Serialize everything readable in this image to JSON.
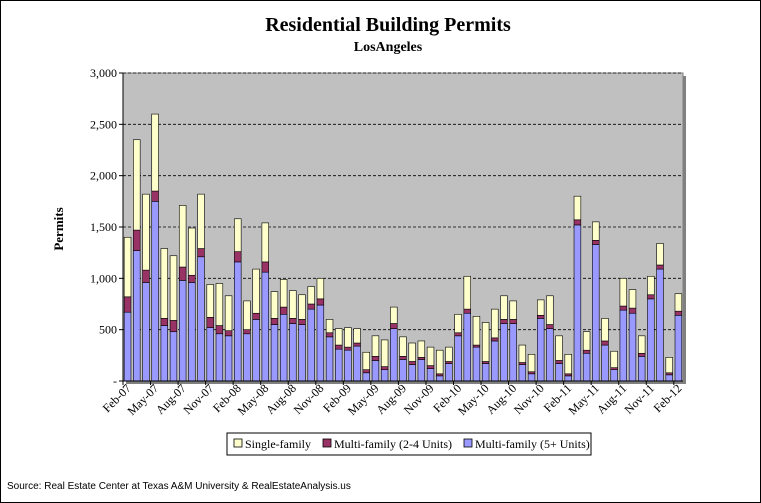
{
  "chart_data": {
    "type": "bar",
    "stacked": true,
    "title": "Residential Building Permits",
    "subtitle": "LosAngeles",
    "ylabel": "Permits",
    "xlabel": "",
    "ylim": [
      0,
      3000
    ],
    "yticks": [
      "-",
      "500",
      "1,000",
      "1,500",
      "2,000",
      "2,500",
      "3,000"
    ],
    "ytick_values": [
      0,
      500,
      1000,
      1500,
      2000,
      2500,
      3000
    ],
    "grid": "horizontal-dashed",
    "plot_background": "#c0c0c0",
    "legend_position": "bottom",
    "source": "Source: Real Estate Center at Texas A&M University & RealEstateAnalysis.us",
    "x_tick_labels": [
      {
        "index": 0,
        "label": "Feb-07"
      },
      {
        "index": 3,
        "label": "May-07"
      },
      {
        "index": 6,
        "label": "Aug-07"
      },
      {
        "index": 9,
        "label": "Nov-07"
      },
      {
        "index": 12,
        "label": "Feb-08"
      },
      {
        "index": 15,
        "label": "May-08"
      },
      {
        "index": 18,
        "label": "Aug-08"
      },
      {
        "index": 21,
        "label": "Nov-08"
      },
      {
        "index": 24,
        "label": "Feb-09"
      },
      {
        "index": 27,
        "label": "May-09"
      },
      {
        "index": 30,
        "label": "Aug-09"
      },
      {
        "index": 33,
        "label": "Nov-09"
      },
      {
        "index": 36,
        "label": "Feb-10"
      },
      {
        "index": 39,
        "label": "May-10"
      },
      {
        "index": 42,
        "label": "Aug-10"
      },
      {
        "index": 45,
        "label": "Nov-10"
      },
      {
        "index": 48,
        "label": "Feb-11"
      },
      {
        "index": 51,
        "label": "May-11"
      },
      {
        "index": 54,
        "label": "Aug-11"
      },
      {
        "index": 57,
        "label": "Nov-11"
      },
      {
        "index": 60,
        "label": "Feb-12"
      }
    ],
    "categories": [
      "Feb-07",
      "Mar-07",
      "Apr-07",
      "May-07",
      "Jun-07",
      "Jul-07",
      "Aug-07",
      "Sep-07",
      "Oct-07",
      "Nov-07",
      "Dec-07",
      "Jan-08",
      "Feb-08",
      "Mar-08",
      "Apr-08",
      "May-08",
      "Jun-08",
      "Jul-08",
      "Aug-08",
      "Sep-08",
      "Oct-08",
      "Nov-08",
      "Dec-08",
      "Jan-09",
      "Feb-09",
      "Mar-09",
      "Apr-09",
      "May-09",
      "Jun-09",
      "Jul-09",
      "Aug-09",
      "Sep-09",
      "Oct-09",
      "Nov-09",
      "Dec-09",
      "Jan-10",
      "Feb-10",
      "Mar-10",
      "Apr-10",
      "May-10",
      "Jun-10",
      "Jul-10",
      "Aug-10",
      "Sep-10",
      "Oct-10",
      "Nov-10",
      "Dec-10",
      "Jan-11",
      "Feb-11",
      "Mar-11",
      "Apr-11",
      "May-11",
      "Jun-11",
      "Jul-11",
      "Aug-11",
      "Sep-11",
      "Oct-11",
      "Nov-11",
      "Dec-11",
      "Jan-12",
      "Feb-12"
    ],
    "series": [
      {
        "name": "Multi-family (5+ Units)",
        "color": "#9999ff",
        "values": [
          670,
          1270,
          960,
          1750,
          540,
          480,
          980,
          960,
          1210,
          520,
          460,
          440,
          1160,
          460,
          600,
          1060,
          550,
          650,
          560,
          550,
          700,
          740,
          430,
          310,
          300,
          340,
          80,
          200,
          110,
          510,
          210,
          160,
          210,
          120,
          50,
          170,
          440,
          660,
          330,
          170,
          390,
          560,
          560,
          160,
          70,
          610,
          510,
          170,
          50,
          1520,
          270,
          1330,
          350,
          110,
          690,
          660,
          240,
          800,
          1090,
          60,
          640
        ]
      },
      {
        "name": "Multi-family (2-4 Units)",
        "color": "#993366",
        "values": [
          150,
          200,
          120,
          100,
          70,
          110,
          130,
          70,
          80,
          100,
          80,
          50,
          100,
          40,
          60,
          100,
          60,
          70,
          50,
          50,
          50,
          60,
          40,
          40,
          30,
          30,
          30,
          40,
          30,
          50,
          30,
          30,
          20,
          30,
          20,
          20,
          30,
          40,
          20,
          20,
          30,
          40,
          40,
          20,
          20,
          30,
          40,
          30,
          20,
          50,
          30,
          40,
          40,
          20,
          40,
          50,
          30,
          40,
          40,
          20,
          40
        ]
      },
      {
        "name": "Single-family",
        "color": "#ffffcc",
        "values": [
          580,
          880,
          740,
          750,
          680,
          630,
          600,
          460,
          530,
          320,
          410,
          340,
          320,
          280,
          430,
          380,
          260,
          270,
          270,
          240,
          170,
          200,
          130,
          160,
          190,
          140,
          170,
          200,
          260,
          160,
          190,
          180,
          160,
          180,
          230,
          140,
          180,
          320,
          280,
          380,
          280,
          230,
          180,
          170,
          170,
          150,
          280,
          240,
          190,
          230,
          180,
          180,
          220,
          160,
          270,
          180,
          170,
          180,
          210,
          150,
          170
        ]
      }
    ],
    "legend_order": [
      "Single-family",
      "Multi-family (2-4 Units)",
      "Multi-family (5+ Units)"
    ]
  }
}
